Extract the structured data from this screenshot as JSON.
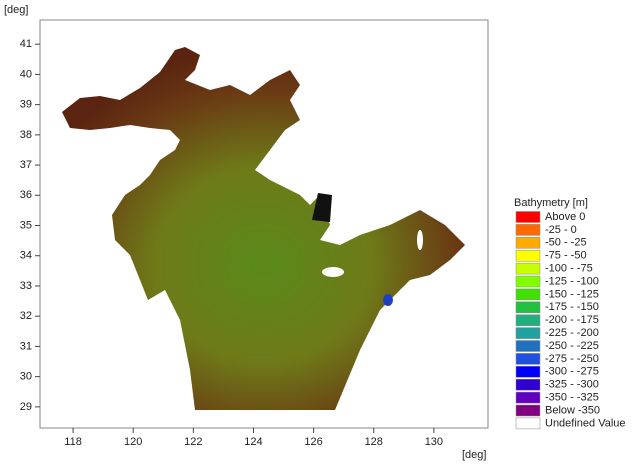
{
  "axes": {
    "x_unit": "[deg]",
    "y_unit": "[deg]",
    "xlim": [
      116.9,
      131.8
    ],
    "xticks": [
      118,
      120,
      122,
      124,
      126,
      128,
      130
    ],
    "ylim": [
      28.3,
      41.8
    ],
    "yticks": [
      29,
      30,
      31,
      32,
      33,
      34,
      35,
      36,
      37,
      38,
      39,
      40,
      41
    ]
  },
  "legend": {
    "title": "Bathymetry [m]",
    "items": [
      {
        "label": "Above 0",
        "color": "#ff0000"
      },
      {
        "label": "-25 - 0",
        "color": "#ff6a00"
      },
      {
        "label": "-50 - -25",
        "color": "#ffaa00"
      },
      {
        "label": "-75 - -50",
        "color": "#ffff00"
      },
      {
        "label": "-100 - -75",
        "color": "#c8ff00"
      },
      {
        "label": "-125 - -100",
        "color": "#80ff00"
      },
      {
        "label": "-150 - -125",
        "color": "#40e000"
      },
      {
        "label": "-175 - -150",
        "color": "#20c040"
      },
      {
        "label": "-200 - -175",
        "color": "#20b080"
      },
      {
        "label": "-225 - -200",
        "color": "#20a0a0"
      },
      {
        "label": "-250 - -225",
        "color": "#2070c0"
      },
      {
        "label": "-275 - -250",
        "color": "#2050e0"
      },
      {
        "label": "-300 - -275",
        "color": "#0000ff"
      },
      {
        "label": "-325 - -300",
        "color": "#3000d0"
      },
      {
        "label": "-350 - -325",
        "color": "#6000c0"
      },
      {
        "label": "Below -350",
        "color": "#800080"
      },
      {
        "label": "Undefined Value",
        "color": "#ffffff"
      }
    ]
  }
}
